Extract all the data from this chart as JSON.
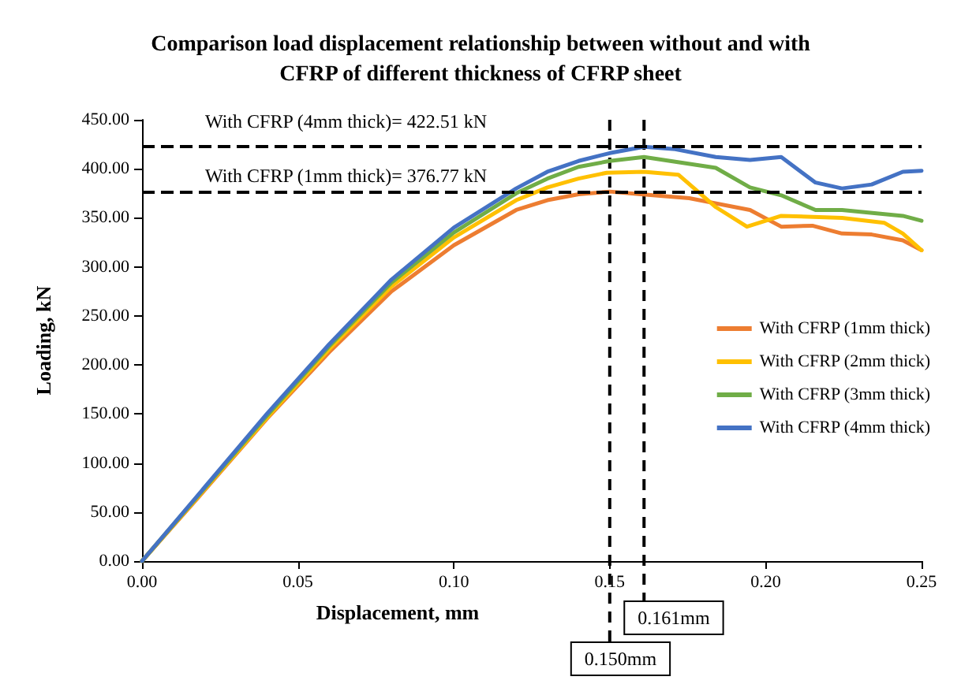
{
  "chart_data": {
    "type": "line",
    "title": "Comparison load displacement relationship between without and with\nCFRP of different thickness of CFRP sheet",
    "xlabel": "Displacement, mm",
    "ylabel": "Loading, kN",
    "xlim": [
      0,
      0.25
    ],
    "xticks": [
      {
        "value": 0,
        "label": "0.00"
      },
      {
        "value": 0.05,
        "label": "0.05"
      },
      {
        "value": 0.1,
        "label": "0.10"
      },
      {
        "value": 0.15,
        "label": "0.15"
      },
      {
        "value": 0.2,
        "label": "0.20"
      },
      {
        "value": 0.25,
        "label": "0.25"
      }
    ],
    "ylim": [
      0,
      450
    ],
    "yticks": [
      {
        "value": 0,
        "label": "0.00"
      },
      {
        "value": 50,
        "label": "50.00"
      },
      {
        "value": 100,
        "label": "100.00"
      },
      {
        "value": 150,
        "label": "150.00"
      },
      {
        "value": 200,
        "label": "200.00"
      },
      {
        "value": 250,
        "label": "250.00"
      },
      {
        "value": 300,
        "label": "300.00"
      },
      {
        "value": 350,
        "label": "350.00"
      },
      {
        "value": 400,
        "label": "400.00"
      },
      {
        "value": 450,
        "label": "450.00"
      }
    ],
    "grid": false,
    "legend": "right",
    "marker": "none",
    "line_style": "solid",
    "series": [
      {
        "name": "With CFRP (1mm thick)",
        "color": "#ed7d31",
        "x": [
          0,
          0.02,
          0.04,
          0.06,
          0.08,
          0.1,
          0.12,
          0.13,
          0.14,
          0.15,
          0.16,
          0.1755,
          0.195,
          0.205,
          0.215,
          0.2245,
          0.234,
          0.244,
          0.25
        ],
        "values": [
          0,
          72,
          145,
          213,
          275,
          322,
          358,
          368,
          374,
          376.77,
          374,
          370,
          358,
          341,
          342,
          334,
          333,
          327,
          317
        ]
      },
      {
        "name": "With CFRP (2mm thick)",
        "color": "#ffc000",
        "x": [
          0,
          0.02,
          0.04,
          0.06,
          0.08,
          0.1,
          0.12,
          0.13,
          0.14,
          0.149,
          0.161,
          0.172,
          0.184,
          0.194,
          0.205,
          0.2245,
          0.238,
          0.244,
          0.25
        ],
        "values": [
          0,
          73,
          146,
          216,
          280,
          330,
          368,
          381,
          390,
          396,
          397,
          394,
          361,
          341,
          352,
          350,
          345,
          334,
          317
        ]
      },
      {
        "name": "With CFRP (3mm thick)",
        "color": "#70ad47",
        "x": [
          0,
          0.02,
          0.04,
          0.06,
          0.08,
          0.1,
          0.12,
          0.13,
          0.14,
          0.15,
          0.161,
          0.184,
          0.195,
          0.205,
          0.216,
          0.2245,
          0.244,
          0.25
        ],
        "values": [
          0,
          74,
          148,
          219,
          284,
          335,
          375,
          390,
          402,
          408,
          412,
          401,
          381,
          373,
          358,
          358,
          352,
          347
        ]
      },
      {
        "name": "With CFRP (4mm thick)",
        "color": "#4472c4",
        "x": [
          0,
          0.02,
          0.04,
          0.06,
          0.08,
          0.1,
          0.12,
          0.13,
          0.14,
          0.15,
          0.161,
          0.171,
          0.184,
          0.195,
          0.205,
          0.216,
          0.2245,
          0.234,
          0.244,
          0.25
        ],
        "values": [
          0,
          75,
          150,
          221,
          287,
          340,
          380,
          397,
          408,
          416,
          422.51,
          420,
          412,
          409,
          412,
          386,
          380,
          384,
          397,
          398
        ]
      }
    ],
    "ref_lines": [
      {
        "axis": "y",
        "value": 422.51,
        "label": "With CFRP (4mm thick)= 422.51 kN",
        "color": "#000000",
        "line_style": "dashed"
      },
      {
        "axis": "y",
        "value": 376.77,
        "label": "With CFRP (1mm thick)= 376.77 kN",
        "color": "#000000",
        "line_style": "dashed"
      },
      {
        "axis": "x",
        "value": 0.15,
        "label": "0.150mm",
        "color": "#000000",
        "line_style": "dashed"
      },
      {
        "axis": "x",
        "value": 0.161,
        "label": "0.161mm",
        "color": "#000000",
        "line_style": "dashed"
      }
    ]
  }
}
